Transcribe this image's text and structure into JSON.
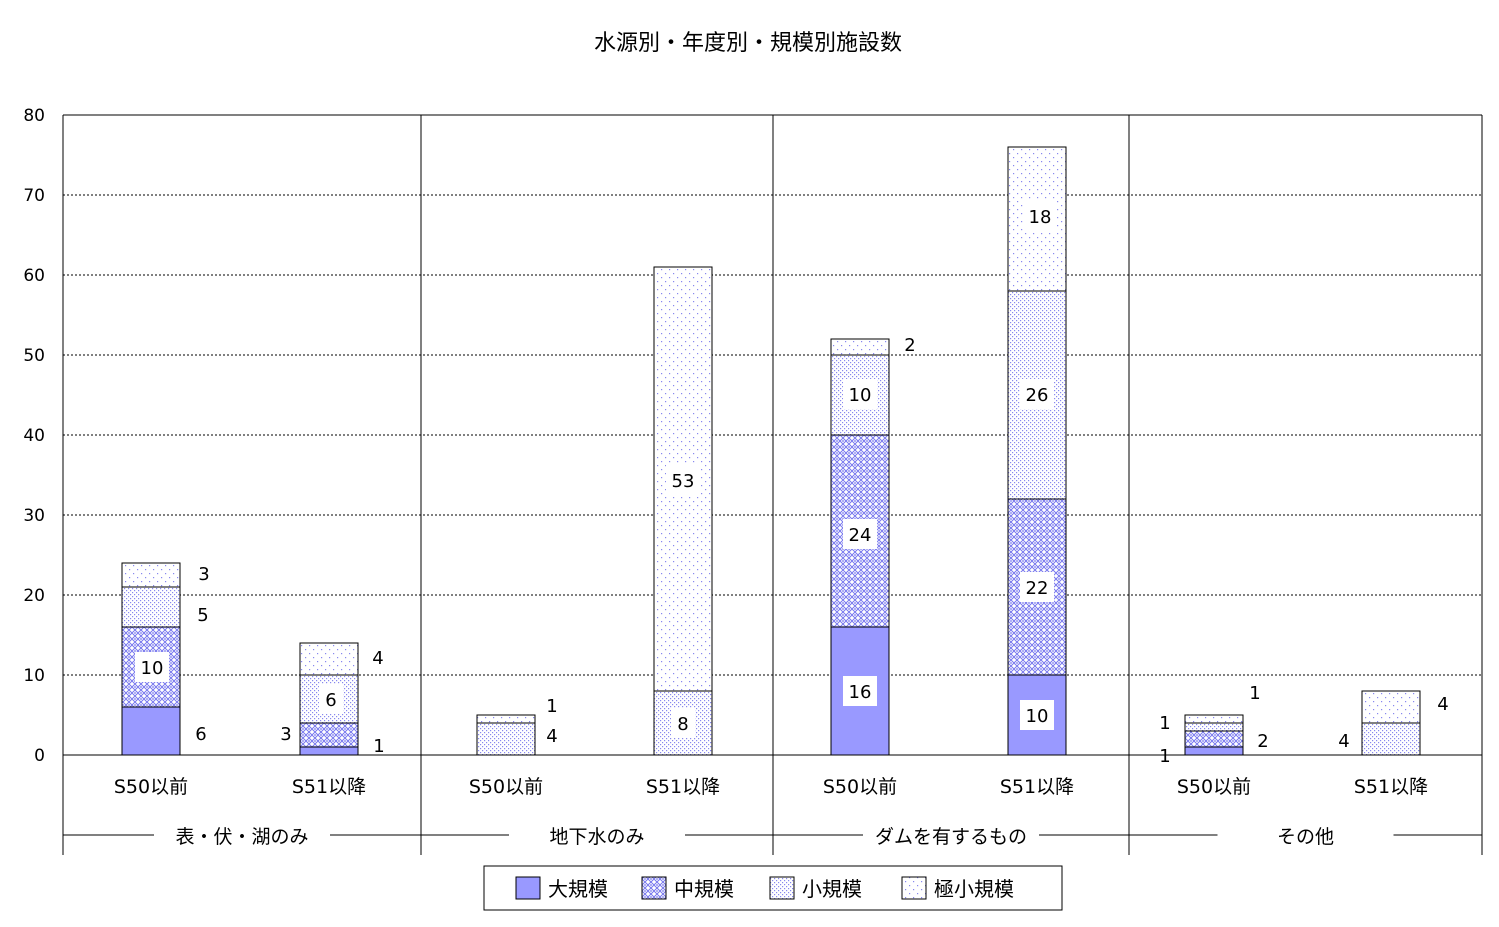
{
  "chart_data": {
    "type": "bar",
    "stacked": true,
    "title": "水源別・年度別・規模別施設数",
    "ylim": [
      0,
      80
    ],
    "yticks": [
      0,
      10,
      20,
      30,
      40,
      50,
      60,
      70,
      80
    ],
    "grid": "horizontal dotted",
    "legend_position": "bottom",
    "categories": [
      "S50以前",
      "S51以降",
      "S50以前",
      "S51以降",
      "S50以前",
      "S51以降",
      "S50以前",
      "S51以降"
    ],
    "groups": [
      {
        "label": "表・伏・湖のみ"
      },
      {
        "label": "地下水のみ"
      },
      {
        "label": "ダムを有するもの"
      },
      {
        "label": "その他"
      }
    ],
    "series": [
      {
        "name": "大規模",
        "values": [
          6,
          1,
          0,
          0,
          16,
          10,
          1,
          0
        ],
        "color": "#9999ff"
      },
      {
        "name": "中規模",
        "values": [
          10,
          3,
          0,
          0,
          24,
          22,
          2,
          0
        ],
        "color": "#9999ff"
      },
      {
        "name": "小規模",
        "values": [
          5,
          6,
          4,
          8,
          10,
          26,
          1,
          4
        ],
        "color": "#9999ff"
      },
      {
        "name": "極小規模",
        "values": [
          3,
          4,
          1,
          53,
          2,
          18,
          1,
          4
        ],
        "color": "#9999ff"
      }
    ]
  }
}
